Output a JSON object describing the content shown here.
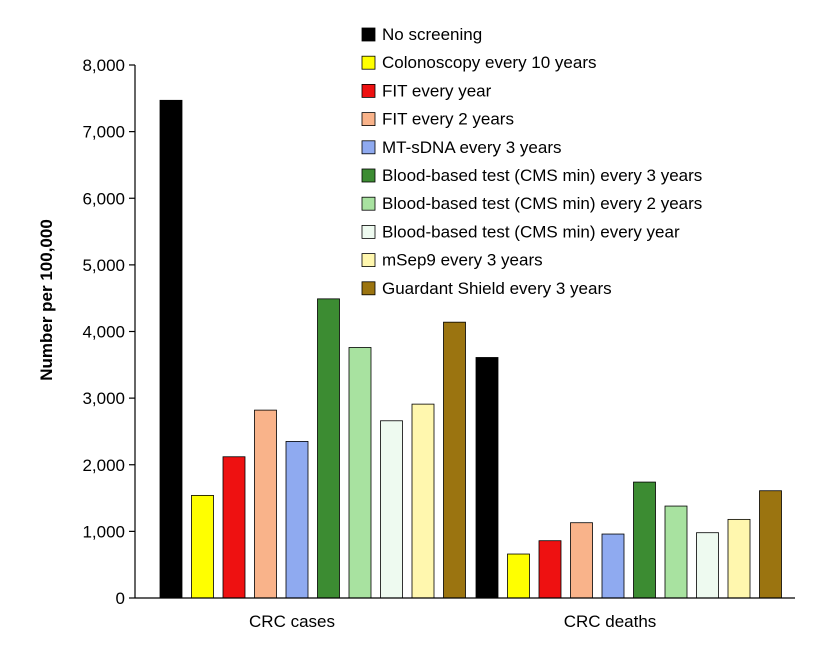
{
  "chart_data": {
    "type": "bar",
    "categories": [
      "CRC cases",
      "CRC deaths"
    ],
    "ylabel": "Number per 100,000",
    "xlabel": "",
    "ylim": [
      0,
      8000
    ],
    "yticks": [
      "0",
      "1,000",
      "2,000",
      "3,000",
      "4,000",
      "5,000",
      "6,000",
      "7,000",
      "8,000"
    ],
    "legend_position": "top-right",
    "grid": false,
    "series": [
      {
        "name": "No screening",
        "color": "#000000",
        "values": [
          7470,
          3610
        ]
      },
      {
        "name": "Colonoscopy every 10 years",
        "color": "#ffff00",
        "values": [
          1540,
          660
        ]
      },
      {
        "name": "FIT every year",
        "color": "#ee1111",
        "values": [
          2120,
          860
        ]
      },
      {
        "name": "FIT every 2 years",
        "color": "#f9b38a",
        "values": [
          2820,
          1130
        ]
      },
      {
        "name": "MT-sDNA every 3 years",
        "color": "#8faaf0",
        "values": [
          2350,
          960
        ]
      },
      {
        "name": "Blood-based test (CMS min) every 3 years",
        "color": "#3c8c32",
        "values": [
          4490,
          1740
        ]
      },
      {
        "name": "Blood-based test (CMS min) every 2 years",
        "color": "#a8e2a0",
        "values": [
          3760,
          1380
        ]
      },
      {
        "name": "Blood-based test (CMS min) every year",
        "color": "#eefaf0",
        "values": [
          2660,
          980
        ]
      },
      {
        "name": "mSep9 every 3 years",
        "color": "#fff7ae",
        "values": [
          2910,
          1180
        ]
      },
      {
        "name": "Guardant Shield every 3 years",
        "color": "#9b7410",
        "values": [
          4140,
          1610
        ]
      }
    ]
  }
}
